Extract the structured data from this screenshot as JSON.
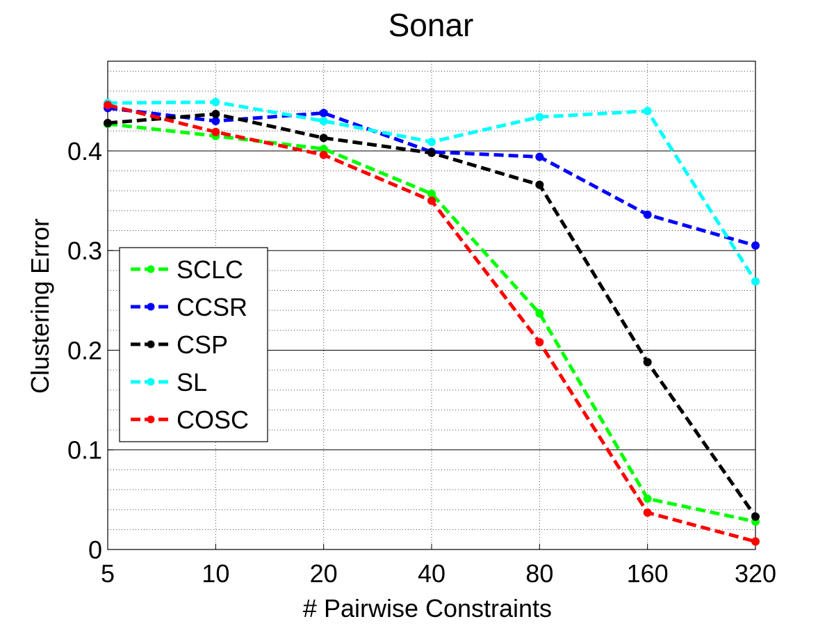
{
  "chart_data": {
    "type": "line",
    "title": "Sonar",
    "xlabel": "# Pairwise Constraints",
    "ylabel": "Clustering Error",
    "categories": [
      "5",
      "10",
      "20",
      "40",
      "80",
      "160",
      "320"
    ],
    "ylim": [
      0,
      0.49
    ],
    "yticks": [
      0,
      0.1,
      0.2,
      0.3,
      0.4
    ],
    "ytick_labels": [
      "0",
      "0.1",
      "0.2",
      "0.3",
      "0.4"
    ],
    "grid": "major solid, minor dotted",
    "legend_position": "left-middle",
    "series": [
      {
        "name": "SCLC",
        "color": "#00ff00",
        "values": [
          0.427,
          0.415,
          0.402,
          0.357,
          0.237,
          0.051,
          0.028
        ]
      },
      {
        "name": "CCSR",
        "color": "#0000ff",
        "values": [
          0.443,
          0.43,
          0.438,
          0.399,
          0.394,
          0.336,
          0.305
        ]
      },
      {
        "name": "CSP",
        "color": "#000000",
        "values": [
          0.428,
          0.437,
          0.413,
          0.398,
          0.366,
          0.188,
          0.033
        ]
      },
      {
        "name": "SL",
        "color": "#00ffff",
        "values": [
          0.448,
          0.449,
          0.43,
          0.409,
          0.434,
          0.44,
          0.269
        ]
      },
      {
        "name": "COSC",
        "color": "#ff0000",
        "values": [
          0.446,
          0.419,
          0.396,
          0.35,
          0.208,
          0.037,
          0.008
        ]
      }
    ]
  }
}
